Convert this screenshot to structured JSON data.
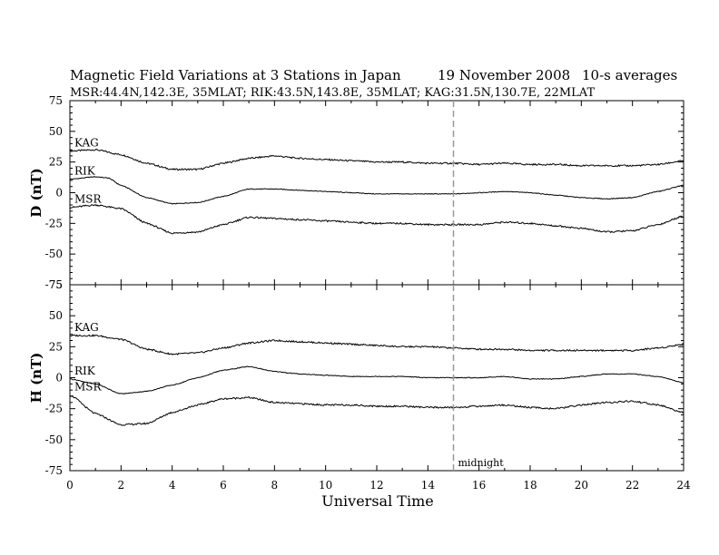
{
  "header": {
    "title": "Magnetic Field Variations at 3 Stations in Japan",
    "date": "19 November 2008",
    "averaging": "10-s averages",
    "stations": "MSR:44.4N,142.3E, 35MLAT;  RIK:43.5N,143.8E, 35MLAT;  KAG:31.5N,130.7E, 22MLAT"
  },
  "chart_data": [
    {
      "type": "line",
      "panel": "D",
      "ylabel": "D (nT)",
      "ylim": [
        -75,
        75
      ],
      "yticks": [
        75,
        50,
        25,
        0,
        -25,
        -50,
        -75
      ],
      "xlim": [
        0,
        24
      ],
      "xticks": [
        0,
        2,
        4,
        6,
        8,
        10,
        12,
        14,
        16,
        18,
        20,
        22,
        24
      ],
      "series": [
        {
          "name": "KAG",
          "points": [
            [
              0,
              34
            ],
            [
              1,
              35
            ],
            [
              2,
              31
            ],
            [
              3,
              24
            ],
            [
              4,
              19
            ],
            [
              5,
              19
            ],
            [
              6,
              24
            ],
            [
              7,
              28
            ],
            [
              8,
              30
            ],
            [
              9,
              28
            ],
            [
              10,
              27
            ],
            [
              11,
              26
            ],
            [
              12,
              25
            ],
            [
              13,
              25
            ],
            [
              14,
              24
            ],
            [
              15,
              24
            ],
            [
              16,
              23
            ],
            [
              17,
              24
            ],
            [
              18,
              23
            ],
            [
              19,
              23
            ],
            [
              20,
              22
            ],
            [
              21,
              22
            ],
            [
              22,
              22
            ],
            [
              23,
              23
            ],
            [
              24,
              26
            ]
          ]
        },
        {
          "name": "RIK",
          "points": [
            [
              0,
              11
            ],
            [
              1,
              13
            ],
            [
              1.5,
              12
            ],
            [
              2,
              6
            ],
            [
              3,
              -4
            ],
            [
              4,
              -9
            ],
            [
              5,
              -8
            ],
            [
              6,
              -3
            ],
            [
              7,
              3
            ],
            [
              8,
              3
            ],
            [
              9,
              2
            ],
            [
              10,
              1
            ],
            [
              11,
              0
            ],
            [
              12,
              -1
            ],
            [
              13,
              -1
            ],
            [
              14,
              -1
            ],
            [
              15,
              -1
            ],
            [
              16,
              0
            ],
            [
              17,
              1
            ],
            [
              18,
              0
            ],
            [
              19,
              -2
            ],
            [
              20,
              -4
            ],
            [
              21,
              -5
            ],
            [
              22,
              -4
            ],
            [
              23,
              1
            ],
            [
              24,
              6
            ]
          ]
        },
        {
          "name": "MSR",
          "points": [
            [
              0,
              -12
            ],
            [
              1,
              -10
            ],
            [
              2,
              -13
            ],
            [
              3,
              -25
            ],
            [
              4,
              -33
            ],
            [
              5,
              -32
            ],
            [
              6,
              -26
            ],
            [
              7,
              -20
            ],
            [
              8,
              -21
            ],
            [
              9,
              -22
            ],
            [
              10,
              -23
            ],
            [
              11,
              -24
            ],
            [
              12,
              -25
            ],
            [
              13,
              -25
            ],
            [
              14,
              -26
            ],
            [
              15,
              -26
            ],
            [
              16,
              -26
            ],
            [
              17,
              -24
            ],
            [
              18,
              -25
            ],
            [
              19,
              -27
            ],
            [
              20,
              -29
            ],
            [
              21,
              -32
            ],
            [
              22,
              -31
            ],
            [
              23,
              -26
            ],
            [
              24,
              -19
            ]
          ]
        }
      ]
    },
    {
      "type": "line",
      "panel": "H",
      "ylabel": "H (nT)",
      "ylim": [
        -75,
        75
      ],
      "yticks": [
        75,
        50,
        25,
        0,
        -25,
        -50,
        -75
      ],
      "xlim": [
        0,
        24
      ],
      "xticks": [
        0,
        2,
        4,
        6,
        8,
        10,
        12,
        14,
        16,
        18,
        20,
        22,
        24
      ],
      "xlabel": "Universal Time",
      "series": [
        {
          "name": "KAG",
          "points": [
            [
              0,
              34
            ],
            [
              1,
              34
            ],
            [
              2,
              31
            ],
            [
              3,
              23
            ],
            [
              4,
              19
            ],
            [
              5,
              20
            ],
            [
              6,
              24
            ],
            [
              7,
              28
            ],
            [
              8,
              30
            ],
            [
              9,
              29
            ],
            [
              10,
              28
            ],
            [
              11,
              27
            ],
            [
              12,
              26
            ],
            [
              13,
              25
            ],
            [
              14,
              25
            ],
            [
              15,
              24
            ],
            [
              16,
              23
            ],
            [
              17,
              23
            ],
            [
              18,
              22
            ],
            [
              19,
              22
            ],
            [
              20,
              22
            ],
            [
              21,
              22
            ],
            [
              22,
              22
            ],
            [
              23,
              24
            ],
            [
              24,
              27
            ]
          ]
        },
        {
          "name": "RIK",
          "points": [
            [
              0,
              -1
            ],
            [
              1,
              -5
            ],
            [
              2,
              -13
            ],
            [
              3,
              -11
            ],
            [
              4,
              -6
            ],
            [
              5,
              0
            ],
            [
              6,
              6
            ],
            [
              7,
              9
            ],
            [
              8,
              5
            ],
            [
              9,
              3
            ],
            [
              10,
              2
            ],
            [
              11,
              1
            ],
            [
              12,
              1
            ],
            [
              13,
              1
            ],
            [
              14,
              0
            ],
            [
              15,
              0
            ],
            [
              16,
              0
            ],
            [
              17,
              1
            ],
            [
              18,
              -1
            ],
            [
              19,
              -1
            ],
            [
              20,
              1
            ],
            [
              21,
              3
            ],
            [
              22,
              3
            ],
            [
              23,
              1
            ],
            [
              24,
              -4
            ]
          ]
        },
        {
          "name": "MSR",
          "points": [
            [
              0,
              -14
            ],
            [
              1,
              -29
            ],
            [
              2,
              -38
            ],
            [
              3,
              -37
            ],
            [
              4,
              -28
            ],
            [
              5,
              -22
            ],
            [
              6,
              -17
            ],
            [
              7,
              -16
            ],
            [
              8,
              -20
            ],
            [
              9,
              -21
            ],
            [
              10,
              -22
            ],
            [
              11,
              -22
            ],
            [
              12,
              -23
            ],
            [
              13,
              -23
            ],
            [
              14,
              -24
            ],
            [
              15,
              -24
            ],
            [
              16,
              -23
            ],
            [
              17,
              -22
            ],
            [
              18,
              -24
            ],
            [
              19,
              -25
            ],
            [
              20,
              -22
            ],
            [
              21,
              -20
            ],
            [
              22,
              -19
            ],
            [
              23,
              -22
            ],
            [
              24,
              -28
            ]
          ]
        }
      ],
      "annotation": {
        "x": 15,
        "text": "midnight"
      }
    }
  ],
  "colors": {
    "line": "#000000",
    "dashed_marker": "#999999"
  }
}
